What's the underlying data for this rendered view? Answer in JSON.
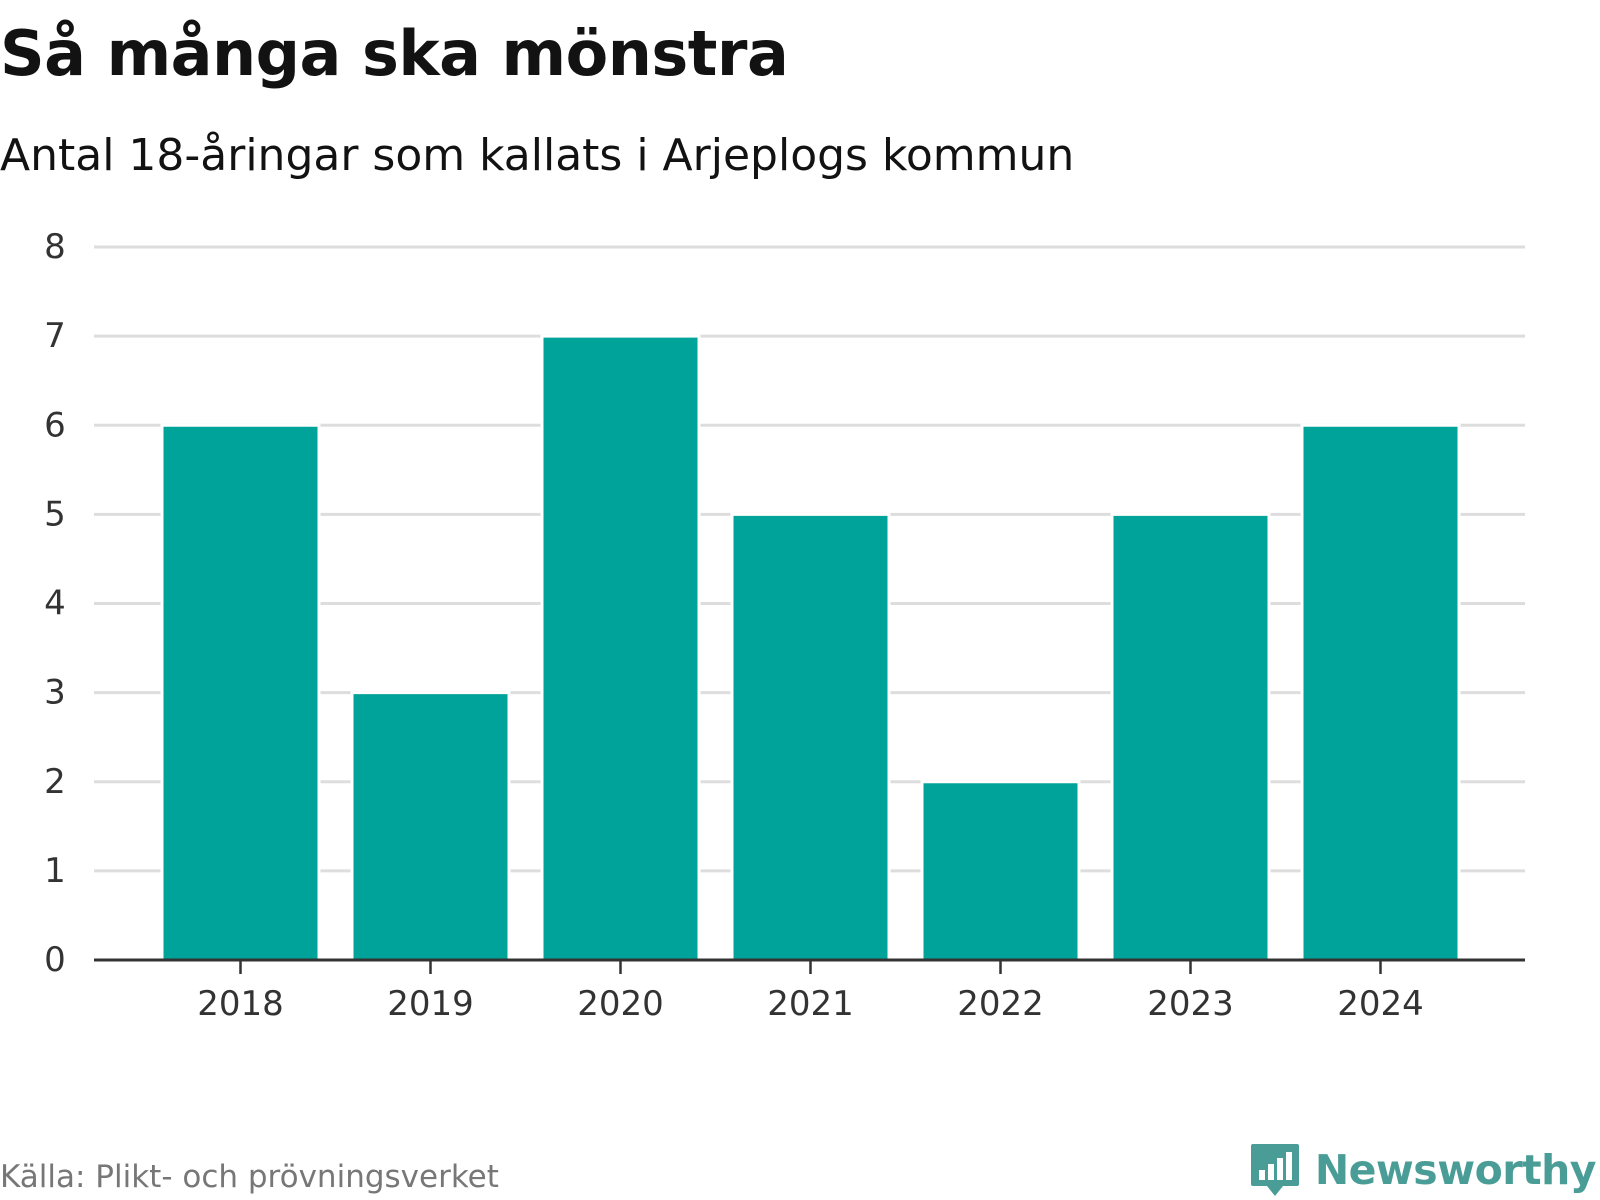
{
  "header": {
    "title": "Så många ska mönstra",
    "subtitle": "Antal 18-åringar som kallats i Arjeplogs kommun"
  },
  "footer": {
    "source": "Källa: Plikt- och prövningsverket",
    "brand": "Newsworthy"
  },
  "colors": {
    "bar": "#00a39a",
    "grid": "#dddddd",
    "axis": "#333333",
    "brand": "#4a9d97"
  },
  "chart_data": {
    "type": "bar",
    "categories": [
      "2018",
      "2019",
      "2020",
      "2021",
      "2022",
      "2023",
      "2024"
    ],
    "values": [
      6,
      3,
      7,
      5,
      2,
      5,
      6
    ],
    "title": "Så många ska mönstra",
    "subtitle": "Antal 18-åringar som kallats i Arjeplogs kommun",
    "xlabel": "",
    "ylabel": "",
    "ylim": [
      0,
      8
    ],
    "yticks": [
      "0",
      "1",
      "2",
      "3",
      "4",
      "5",
      "6",
      "7",
      "8"
    ],
    "grid": true,
    "legend": "none"
  }
}
